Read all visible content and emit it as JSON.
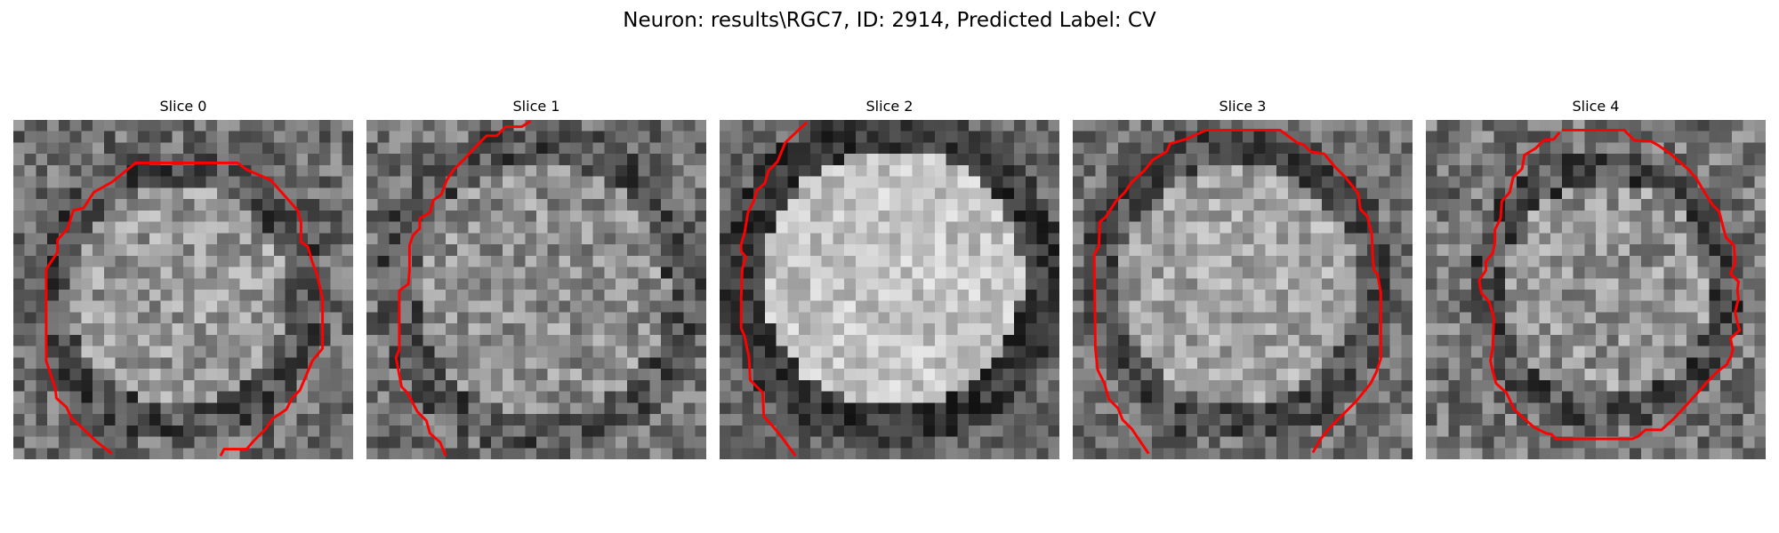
{
  "figure": {
    "title": "Neuron: results\\RGC7, ID: 2914, Predicted Label: CV"
  },
  "panels": [
    {
      "title": "Slice 0"
    },
    {
      "title": "Slice 1"
    },
    {
      "title": "Slice 2"
    },
    {
      "title": "Slice 3"
    },
    {
      "title": "Slice 4"
    }
  ],
  "colors": {
    "contour": "#ff0000",
    "background": "#ffffff"
  }
}
